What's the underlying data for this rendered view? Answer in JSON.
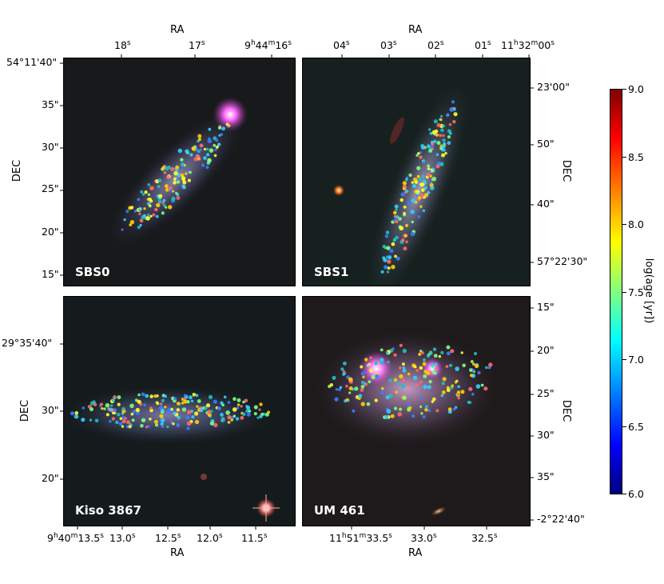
{
  "top_axis": {
    "left_title": "RA",
    "right_title": "RA",
    "left_ticks": [
      "18s",
      "17s",
      "9h44m16s"
    ],
    "right_ticks": [
      "04s",
      "03s",
      "02s",
      "01s",
      "11h32m00s"
    ]
  },
  "bottom_axis": {
    "left_title": "RA",
    "right_title": "RA",
    "left_ticks": [
      "9h40m13.5s",
      "13.0s",
      "12.5s",
      "12.0s",
      "11.5s"
    ],
    "right_ticks": [
      "11h51m33.5s",
      "33.0s",
      "32.5s"
    ]
  },
  "left_axis": {
    "top_title": "DEC",
    "bottom_title": "DEC",
    "top_ticks": [
      "54°11'40\"",
      "35\"",
      "30\"",
      "25\"",
      "20\"",
      "15\""
    ],
    "bottom_ticks": [
      "29°35'40\"",
      "30\"",
      "20\""
    ]
  },
  "right_axis": {
    "top_title": "DEC",
    "bottom_title": "DEC",
    "top_ticks": [
      "23'00\"",
      "50\"",
      "40\"",
      "57°22'30\""
    ],
    "bottom_ticks": [
      "15\"",
      "20\"",
      "25\"",
      "30\"",
      "35\"",
      "-2°22'40\""
    ]
  },
  "panels": [
    {
      "name": "SBS0"
    },
    {
      "name": "SBS1"
    },
    {
      "name": "Kiso 3867"
    },
    {
      "name": "UM 461"
    }
  ],
  "colorbar": {
    "label": "log(age [yr])",
    "ticks": [
      "9.0",
      "8.5",
      "8.0",
      "7.5",
      "7.0",
      "6.5",
      "6.0"
    ],
    "min": 6.0,
    "max": 9.0,
    "colormap": "jet"
  }
}
